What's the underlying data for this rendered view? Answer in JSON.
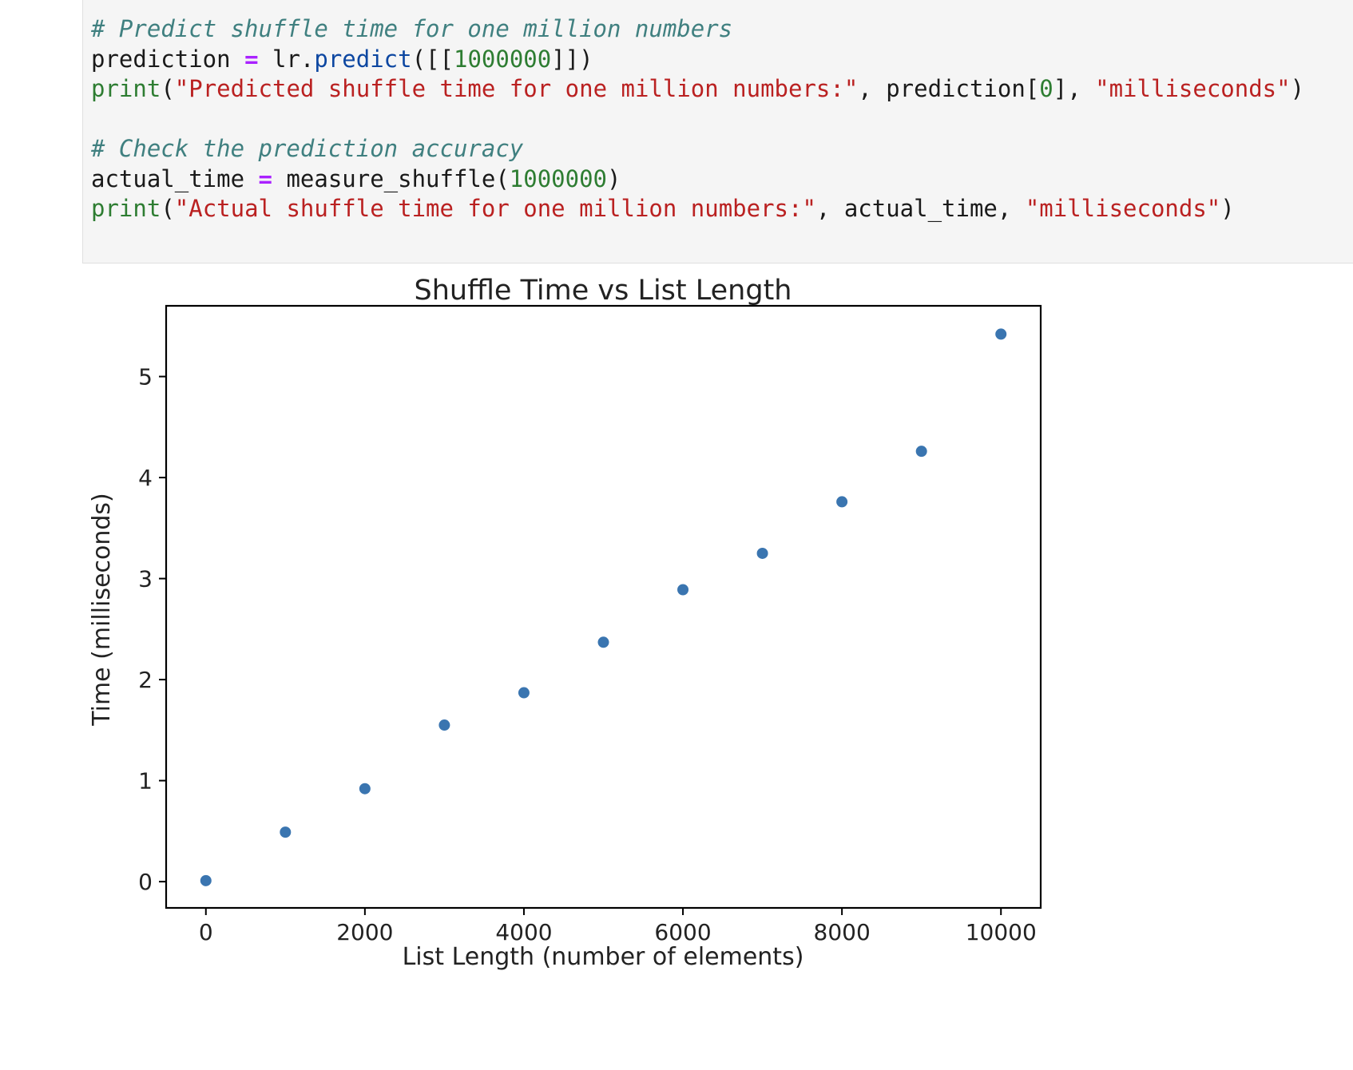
{
  "code_cell": {
    "lines": [
      [
        {
          "t": "# Predict shuffle time for one million numbers",
          "c": "c-comment"
        }
      ],
      [
        {
          "t": "prediction ",
          "c": ""
        },
        {
          "t": "=",
          "c": "c-op"
        },
        {
          "t": " lr.",
          "c": ""
        },
        {
          "t": "predict",
          "c": "c-attr"
        },
        {
          "t": "([[",
          "c": ""
        },
        {
          "t": "1000000",
          "c": "c-num"
        },
        {
          "t": "]])",
          "c": ""
        }
      ],
      [
        {
          "t": "print",
          "c": "c-builtin"
        },
        {
          "t": "(",
          "c": ""
        },
        {
          "t": "\"Predicted shuffle time for one million numbers:\"",
          "c": "c-str"
        },
        {
          "t": ", prediction[",
          "c": ""
        },
        {
          "t": "0",
          "c": "c-num"
        },
        {
          "t": "], ",
          "c": ""
        },
        {
          "t": "\"milliseconds\"",
          "c": "c-str"
        },
        {
          "t": ")",
          "c": ""
        }
      ],
      [
        {
          "t": "",
          "c": ""
        }
      ],
      [
        {
          "t": "# Check the prediction accuracy",
          "c": "c-comment"
        }
      ],
      [
        {
          "t": "actual_time ",
          "c": ""
        },
        {
          "t": "=",
          "c": "c-op"
        },
        {
          "t": " measure_shuffle(",
          "c": ""
        },
        {
          "t": "1000000",
          "c": "c-num"
        },
        {
          "t": ")",
          "c": ""
        }
      ],
      [
        {
          "t": "print",
          "c": "c-builtin"
        },
        {
          "t": "(",
          "c": ""
        },
        {
          "t": "\"Actual shuffle time for one million numbers:\"",
          "c": "c-str"
        },
        {
          "t": ", actual_time, ",
          "c": ""
        },
        {
          "t": "\"milliseconds\"",
          "c": "c-str"
        },
        {
          "t": ")",
          "c": ""
        }
      ]
    ]
  },
  "chart_data": {
    "type": "scatter",
    "title": "Shuffle Time vs List Length",
    "xlabel": "List Length (number of elements)",
    "ylabel": "Time (milliseconds)",
    "x": [
      0,
      1000,
      2000,
      3000,
      4000,
      5000,
      6000,
      7000,
      8000,
      9000,
      10000
    ],
    "y": [
      0.01,
      0.49,
      0.92,
      1.55,
      1.87,
      2.37,
      2.89,
      3.25,
      3.76,
      4.26,
      5.42
    ],
    "xlim": [
      -500,
      10500
    ],
    "ylim": [
      -0.26,
      5.7
    ],
    "xticks": [
      0,
      2000,
      4000,
      6000,
      8000,
      10000
    ],
    "yticks": [
      0,
      1,
      2,
      3,
      4,
      5
    ],
    "grid": false,
    "marker_color": "#3a75b0"
  }
}
